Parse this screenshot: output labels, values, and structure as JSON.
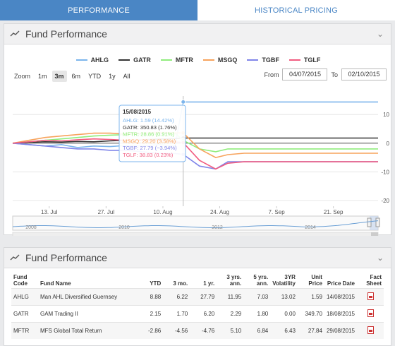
{
  "tabs": [
    {
      "label": "PERFORMANCE",
      "active": true
    },
    {
      "label": "HISTORICAL PRICING",
      "active": false
    }
  ],
  "chart_panel": {
    "title": "Fund Performance",
    "zoom": {
      "label": "Zoom",
      "options": [
        "1m",
        "3m",
        "6m",
        "YTD",
        "1y",
        "All"
      ],
      "selected": "3m"
    },
    "from_label": "From",
    "from_date": "04/07/2015",
    "to_label": "To",
    "to_date": "02/10/2015",
    "tooltip": {
      "date": "15/08/2015",
      "rows": [
        "AHLG: 1.59 (14.42%)",
        "GATR: 350.83 (1.76%)",
        "MFTR: 28.86 (0.91%)",
        "MSGQ: 29.20 (3.58%)",
        "TGBF: 27.79 (−3.94%)",
        "TGLF: 38.83 (0.23%)"
      ]
    },
    "navigator_years": [
      "2008",
      "2010",
      "2012",
      "2014"
    ]
  },
  "chart_data": {
    "type": "line",
    "x": [
      "2015-07-04",
      "2015-07-08",
      "2015-07-12",
      "2015-07-16",
      "2015-07-20",
      "2015-07-24",
      "2015-07-28",
      "2015-08-01",
      "2015-08-05",
      "2015-08-09",
      "2015-08-13",
      "2015-08-15",
      "2015-08-19",
      "2015-08-23",
      "2015-08-26",
      "2015-08-30",
      "2015-09-05",
      "2015-09-15",
      "2015-09-25",
      "2015-10-02"
    ],
    "x_tick_labels": [
      "13. Jul",
      "27. Jul",
      "10. Aug",
      "24. Aug",
      "7. Sep",
      "21. Sep"
    ],
    "y_tick_labels": [
      "10",
      "0",
      "-10",
      "-20"
    ],
    "ylim": [
      -22,
      14
    ],
    "series": [
      {
        "name": "AHLG",
        "color": "#7cb5ec",
        "values": [
          0,
          -0.5,
          -1,
          -0.5,
          -1.5,
          -1,
          -1.2,
          -0.8,
          -1,
          -0.5,
          -1,
          14.4,
          14.4,
          14.4,
          14.4,
          14.4,
          14.4,
          14.4,
          14.4,
          14.4
        ]
      },
      {
        "name": "GATR",
        "color": "#333333",
        "values": [
          0,
          0.3,
          0.5,
          0.4,
          0.6,
          0.5,
          0.8,
          1,
          1.2,
          1.4,
          1.6,
          1.8,
          1.8,
          1.8,
          1.8,
          1.8,
          1.8,
          1.8,
          1.8,
          1.8
        ]
      },
      {
        "name": "MFTR",
        "color": "#90ed7d",
        "values": [
          0,
          0.5,
          1,
          1.5,
          2,
          2.5,
          2.8,
          3,
          3.2,
          3.2,
          3.5,
          1,
          -2,
          -3,
          -2,
          -2,
          -2,
          -2,
          -2,
          -2
        ]
      },
      {
        "name": "MSGQ",
        "color": "#f7a35c",
        "values": [
          0,
          1,
          2,
          2.5,
          3,
          3.5,
          3.5,
          3.2,
          3.5,
          3.8,
          3.6,
          3.6,
          -2,
          -5,
          -4,
          -3.5,
          -3.5,
          -3.5,
          -3.5,
          -3.5
        ]
      },
      {
        "name": "TGBF",
        "color": "#8085e9",
        "values": [
          0,
          -0.5,
          -1,
          -1.5,
          -2,
          -2,
          -2.5,
          -2.5,
          -3,
          -3.5,
          -3.6,
          -3.9,
          -8,
          -9,
          -6.5,
          -6.5,
          -6.5,
          -6.5,
          -6.5,
          -6.5
        ]
      },
      {
        "name": "TGLF",
        "color": "#f15c80",
        "values": [
          0,
          0.5,
          1,
          0.8,
          1.2,
          1.5,
          1.3,
          1,
          1.1,
          0.8,
          0.5,
          0.2,
          -6,
          -9,
          -7,
          -6.5,
          -6.5,
          -6.5,
          -6.5,
          -6.5
        ]
      }
    ]
  },
  "table_panel": {
    "title": "Fund Performance",
    "headers": [
      "Fund Code",
      "Fund Name",
      "YTD",
      "3 mo.",
      "1 yr.",
      "3 yrs. ann.",
      "5 yrs. ann.",
      "3YR Volatility",
      "Unit Price",
      "Price Date",
      "Fact Sheet"
    ],
    "rows": [
      [
        "AHLG",
        "Man AHL Diversified Guernsey",
        "8.88",
        "6.22",
        "27.79",
        "11.95",
        "7.03",
        "13.02",
        "1.59",
        "14/08/2015"
      ],
      [
        "GATR",
        "GAM Trading II",
        "2.15",
        "1.70",
        "6.20",
        "2.29",
        "1.80",
        "0.00",
        "349.70",
        "18/08/2015"
      ],
      [
        "MFTR",
        "MFS Global Total Return",
        "-2.86",
        "-4.56",
        "-4.76",
        "5.10",
        "6.84",
        "6.43",
        "27.84",
        "29/08/2015"
      ]
    ]
  }
}
